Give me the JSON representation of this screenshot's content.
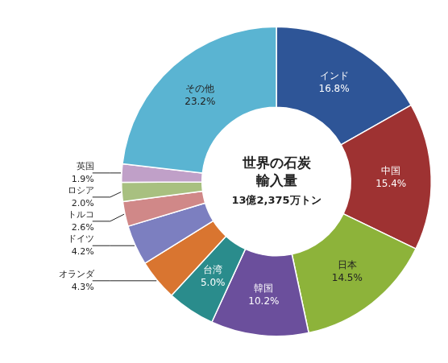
{
  "chart_data": {
    "type": "doughnut",
    "title": [
      "世界の石炭",
      "輸入量"
    ],
    "subtitle": "13億2,375万トン",
    "categories": [
      "インド",
      "中国",
      "日本",
      "韓国",
      "台湾",
      "オランダ",
      "ドイツ",
      "トルコ",
      "ロシア",
      "英国",
      "その他"
    ],
    "values": [
      16.8,
      15.4,
      14.5,
      10.2,
      5.0,
      4.3,
      4.2,
      2.6,
      2.0,
      1.9,
      23.2
    ],
    "value_labels": [
      "16.8%",
      "15.4%",
      "14.5%",
      "10.2%",
      "5.0%",
      "4.3%",
      "4.2%",
      "2.6%",
      "2.0%",
      "1.9%",
      "23.2%"
    ],
    "colors": [
      "#2e5597",
      "#9e3232",
      "#8db33a",
      "#6b4f9c",
      "#2a8c8c",
      "#d97530",
      "#7c7fc0",
      "#d08888",
      "#a8c080",
      "#c0a0c8",
      "#5ab4d2"
    ],
    "data_labels": true
  }
}
